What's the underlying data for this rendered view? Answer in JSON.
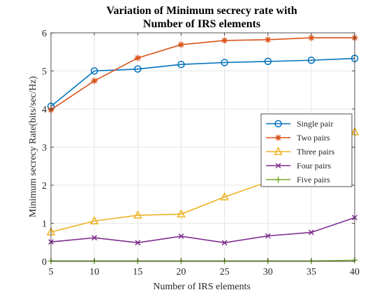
{
  "chart_data": {
    "type": "line",
    "title_lines": [
      "Variation of Minimum secrecy rate with",
      "Number of IRS elements"
    ],
    "xlabel": "Number of IRS elements",
    "ylabel": "Minimum secrecy Rate(bits/sec/Hz)",
    "x": [
      5,
      10,
      15,
      20,
      25,
      30,
      35,
      40
    ],
    "xlim": [
      5,
      40
    ],
    "ylim": [
      0,
      6
    ],
    "xticks": [
      5,
      10,
      15,
      20,
      25,
      30,
      35,
      40
    ],
    "yticks": [
      0,
      1,
      2,
      3,
      4,
      5,
      6
    ],
    "grid": true,
    "legend_position": "right, middle",
    "series": [
      {
        "name": "Single pair",
        "color": "#0072BD",
        "marker": "circle",
        "values": [
          4.07,
          5.0,
          5.05,
          5.17,
          5.22,
          5.25,
          5.28,
          5.33
        ]
      },
      {
        "name": "Two pairs",
        "color": "#D95319",
        "marker": "asterisk",
        "values": [
          3.98,
          4.74,
          5.34,
          5.69,
          5.8,
          5.82,
          5.87,
          5.87
        ]
      },
      {
        "name": "Three pairs",
        "color": "#EDB120",
        "marker": "triangle",
        "values": [
          0.77,
          1.06,
          1.21,
          1.24,
          1.69,
          2.09,
          2.6,
          3.4
        ]
      },
      {
        "name": "Four pairs",
        "color": "#7E2F8E",
        "marker": "x",
        "values": [
          0.51,
          0.62,
          0.49,
          0.66,
          0.49,
          0.67,
          0.76,
          1.15
        ]
      },
      {
        "name": "Five pairs",
        "color": "#77AC30",
        "marker": "plus",
        "values": [
          0.01,
          0.01,
          0.01,
          0.01,
          0.01,
          0.01,
          0.01,
          0.03
        ]
      }
    ]
  }
}
